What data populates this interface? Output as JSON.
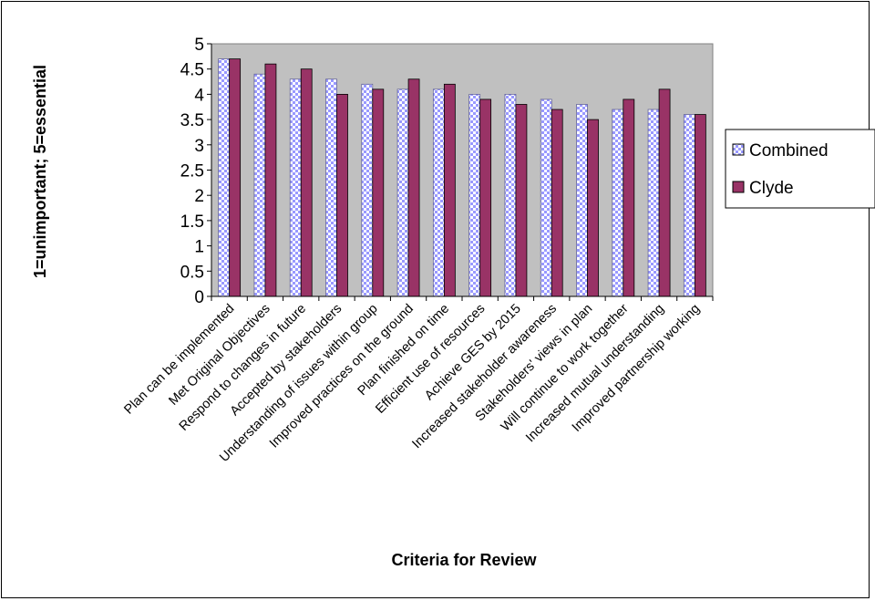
{
  "chart_data": {
    "type": "bar",
    "title": "",
    "xlabel": "Criteria for Review",
    "ylabel": "1=unimportant; 5=essential",
    "ylim": [
      0,
      5
    ],
    "yticks": [
      "0",
      "0.5",
      "1",
      "1.5",
      "2",
      "2.5",
      "3",
      "3.5",
      "4",
      "4.5",
      "5"
    ],
    "grid": false,
    "legend_position": "right",
    "plot_background": "#C0C0C0",
    "categories": [
      "Plan can be implemented",
      "Met Original Objectives",
      "Respond to changes in future",
      "Accepted by stakeholders",
      "Understanding of issues within group",
      "Improved practices on the ground",
      "Plan finished on time",
      "Efficient use of resources",
      "Achieve GES by 2015",
      "Increased stakeholder awareness",
      "Stakeholders' views in plan",
      "Will continue to work together",
      "Increased mutual understanding",
      "Improved partnership working"
    ],
    "series": [
      {
        "name": "Combined",
        "color": "#CCCCFF",
        "pattern": "checker",
        "values": [
          4.7,
          4.4,
          4.3,
          4.3,
          4.2,
          4.1,
          4.1,
          4.0,
          4.0,
          3.9,
          3.8,
          3.7,
          3.7,
          3.6
        ]
      },
      {
        "name": "Clyde",
        "color": "#993366",
        "pattern": "solid",
        "values": [
          4.7,
          4.6,
          4.5,
          4.0,
          4.1,
          4.3,
          4.2,
          3.9,
          3.8,
          3.7,
          3.5,
          3.9,
          4.1,
          3.6
        ]
      }
    ]
  }
}
